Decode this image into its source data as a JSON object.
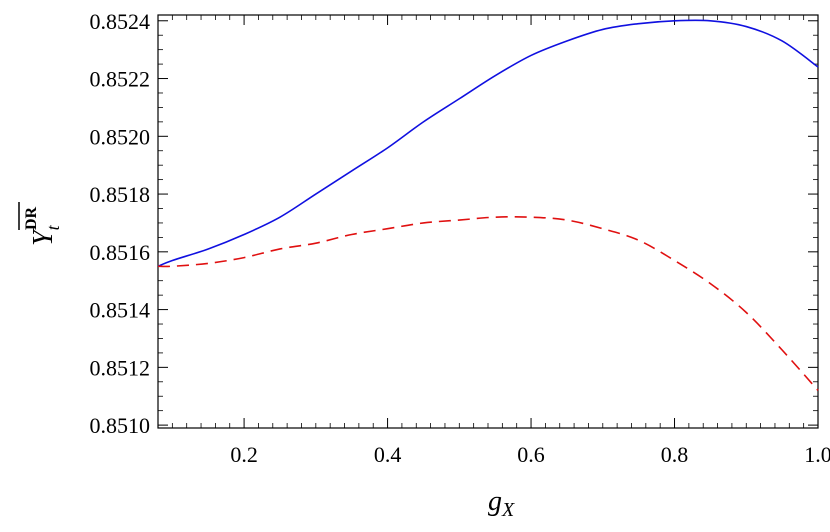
{
  "chart_data": {
    "type": "line",
    "title": "",
    "xlabel": {
      "main": "g",
      "sub": "X"
    },
    "ylabel": {
      "main": "Y",
      "sub": "t",
      "sup": "DR"
    },
    "xlim": [
      0.08,
      1.0
    ],
    "ylim": [
      0.85099,
      0.85242
    ],
    "xticks": [
      0.2,
      0.4,
      0.6,
      0.8,
      1.0
    ],
    "xtick_labels": [
      "0.2",
      "0.4",
      "0.6",
      "0.8",
      "1.0"
    ],
    "yticks": [
      0.851,
      0.8512,
      0.8514,
      0.8516,
      0.8518,
      0.852,
      0.8522,
      0.8524
    ],
    "ytick_labels": [
      "0.8510",
      "0.8512",
      "0.8514",
      "0.8516",
      "0.8518",
      "0.8520",
      "0.8522",
      "0.8524"
    ],
    "grid": false,
    "legend": "none",
    "series": [
      {
        "style": "solid",
        "color": "#1010e0",
        "x": [
          0.08,
          0.1,
          0.15,
          0.2,
          0.25,
          0.3,
          0.35,
          0.4,
          0.45,
          0.5,
          0.55,
          0.6,
          0.65,
          0.7,
          0.75,
          0.8,
          0.85,
          0.9,
          0.95,
          1.0
        ],
        "y": [
          0.85155,
          0.85157,
          0.85161,
          0.85166,
          0.85172,
          0.8518,
          0.85188,
          0.85196,
          0.85205,
          0.85213,
          0.85221,
          0.85228,
          0.85233,
          0.85237,
          0.85239,
          0.8524,
          0.8524,
          0.85238,
          0.85233,
          0.85224
        ]
      },
      {
        "style": "dashed",
        "color": "#e01010",
        "x": [
          0.08,
          0.1,
          0.15,
          0.2,
          0.25,
          0.3,
          0.35,
          0.4,
          0.45,
          0.5,
          0.55,
          0.6,
          0.65,
          0.7,
          0.75,
          0.8,
          0.85,
          0.9,
          0.95,
          1.0
        ],
        "y": [
          0.85155,
          0.85155,
          0.85156,
          0.85158,
          0.85161,
          0.85163,
          0.85166,
          0.85168,
          0.8517,
          0.85171,
          0.85172,
          0.85172,
          0.85171,
          0.85168,
          0.85164,
          0.85157,
          0.85149,
          0.85139,
          0.85126,
          0.85112
        ]
      }
    ]
  }
}
